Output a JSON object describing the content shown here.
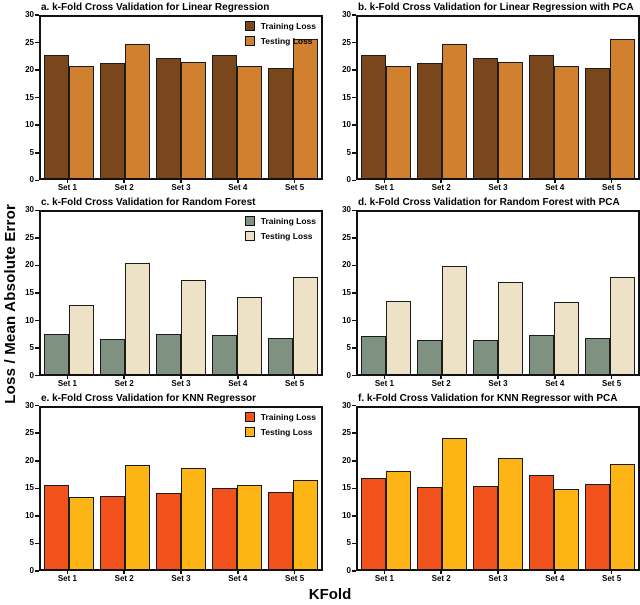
{
  "figure": {
    "ylabel": "Loss / Mean Absolute Error",
    "xlabel": "KFold"
  },
  "chart_data": [
    {
      "type": "bar",
      "panel": "a",
      "title": "a. k-Fold Cross Validation for Linear Regression",
      "categories": [
        "Set 1",
        "Set 2",
        "Set 3",
        "Set 4",
        "Set 5"
      ],
      "series": [
        {
          "name": "Training Loss",
          "color": "#7A471D",
          "values": [
            23.0,
            21.5,
            22.3,
            22.9,
            20.6
          ]
        },
        {
          "name": "Testing Loss",
          "color": "#D0802F",
          "values": [
            20.8,
            25.0,
            21.6,
            20.8,
            25.9
          ]
        }
      ],
      "ylim": [
        0,
        30
      ],
      "yticks": [
        0,
        5,
        10,
        15,
        20,
        25,
        30
      ],
      "legend": true,
      "legend_position": "top-right",
      "grid": false
    },
    {
      "type": "bar",
      "panel": "b",
      "title": "b. k-Fold Cross Validation for Linear Regression with PCA",
      "categories": [
        "Set 1",
        "Set 2",
        "Set 3",
        "Set 4",
        "Set 5"
      ],
      "series": [
        {
          "name": "Training Loss",
          "color": "#7A471D",
          "values": [
            23.0,
            21.5,
            22.3,
            22.9,
            20.6
          ]
        },
        {
          "name": "Testing Loss",
          "color": "#D0802F",
          "values": [
            20.8,
            25.0,
            21.6,
            20.8,
            25.9
          ]
        }
      ],
      "ylim": [
        0,
        30
      ],
      "yticks": [
        0,
        5,
        10,
        15,
        20,
        25,
        30
      ],
      "legend": false,
      "legend_position": "top-right",
      "grid": false
    },
    {
      "type": "bar",
      "panel": "c",
      "title": "c. k-Fold Cross Validation for Random Forest",
      "categories": [
        "Set 1",
        "Set 2",
        "Set 3",
        "Set 4",
        "Set 5"
      ],
      "series": [
        {
          "name": "Training Loss",
          "color": "#7F9180",
          "values": [
            7.4,
            6.5,
            7.4,
            7.2,
            6.7
          ]
        },
        {
          "name": "Testing Loss",
          "color": "#EEE2C6",
          "values": [
            12.8,
            20.5,
            17.4,
            14.3,
            17.9
          ]
        }
      ],
      "ylim": [
        0,
        30
      ],
      "yticks": [
        0,
        5,
        10,
        15,
        20,
        25,
        30
      ],
      "legend": true,
      "legend_position": "top-right",
      "grid": false
    },
    {
      "type": "bar",
      "panel": "d",
      "title": "d. k-Fold Cross Validation for Random Forest with PCA",
      "categories": [
        "Set 1",
        "Set 2",
        "Set 3",
        "Set 4",
        "Set 5"
      ],
      "series": [
        {
          "name": "Training Loss",
          "color": "#7F9180",
          "values": [
            7.0,
            6.2,
            6.3,
            7.1,
            6.7
          ]
        },
        {
          "name": "Testing Loss",
          "color": "#EEE2C6",
          "values": [
            13.5,
            20.0,
            17.0,
            13.4,
            18.0
          ]
        }
      ],
      "ylim": [
        0,
        30
      ],
      "yticks": [
        0,
        5,
        10,
        15,
        20,
        25,
        30
      ],
      "legend": false,
      "legend_position": "top-right",
      "grid": false
    },
    {
      "type": "bar",
      "panel": "e",
      "title": "e. k-Fold Cross Validation for KNN Regressor",
      "categories": [
        "Set 1",
        "Set 2",
        "Set 3",
        "Set 4",
        "Set 5"
      ],
      "series": [
        {
          "name": "Training Loss",
          "color": "#F1511B",
          "values": [
            15.7,
            13.5,
            14.1,
            15.0,
            14.4
          ]
        },
        {
          "name": "Testing Loss",
          "color": "#FDB515",
          "values": [
            13.4,
            19.3,
            18.7,
            15.7,
            16.6
          ]
        }
      ],
      "ylim": [
        0,
        30
      ],
      "yticks": [
        0,
        5,
        10,
        15,
        20,
        25,
        30
      ],
      "legend": true,
      "legend_position": "top-right",
      "grid": false
    },
    {
      "type": "bar",
      "panel": "f",
      "title": "f. k-Fold Cross Validation for KNN Regressor with PCA",
      "categories": [
        "Set 1",
        "Set 2",
        "Set 3",
        "Set 4",
        "Set 5"
      ],
      "series": [
        {
          "name": "Training Loss",
          "color": "#F1511B",
          "values": [
            16.9,
            15.3,
            15.4,
            17.5,
            15.8
          ]
        },
        {
          "name": "Testing Loss",
          "color": "#FDB515",
          "values": [
            18.3,
            24.3,
            20.6,
            14.8,
            19.5
          ]
        }
      ],
      "ylim": [
        0,
        30
      ],
      "yticks": [
        0,
        5,
        10,
        15,
        20,
        25,
        30
      ],
      "legend": false,
      "legend_position": "top-right",
      "grid": false
    }
  ]
}
